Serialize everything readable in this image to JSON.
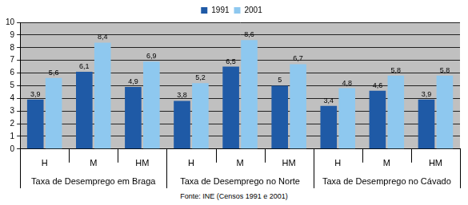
{
  "chart_data": {
    "type": "bar",
    "categories": [
      "H",
      "M",
      "HM",
      "H",
      "M",
      "HM",
      "H",
      "M",
      "HM"
    ],
    "category_groups": [
      "Taxa de Desemprego em Braga",
      "Taxa de Desemprego no Norte",
      "Taxa de Desemprego no Cávado"
    ],
    "series": [
      {
        "name": "1991",
        "color": "#1f5aa6",
        "values": [
          3.9,
          6.1,
          4.9,
          3.8,
          6.5,
          5,
          3.4,
          4.6,
          3.9
        ],
        "value_labels": [
          "3,9",
          "6,1",
          "4,9",
          "3,8",
          "6,5",
          "5",
          "3,4",
          "4,6",
          "3,9"
        ]
      },
      {
        "name": "2001",
        "color": "#8ec8ef",
        "values": [
          5.6,
          8.4,
          6.9,
          5.2,
          8.6,
          6.7,
          4.8,
          5.8,
          5.8
        ],
        "value_labels": [
          "5,6",
          "8,4",
          "6,9",
          "5,2",
          "8,6",
          "6,7",
          "4,8",
          "5,8",
          "5,8"
        ]
      }
    ],
    "ylim": [
      0,
      10
    ],
    "yticks": [
      0,
      1,
      2,
      3,
      4,
      5,
      6,
      7,
      8,
      9,
      10
    ],
    "grid": true,
    "legend": "top",
    "data_labels": true,
    "source": "Fonte: INE (Censos 1991 e 2001)"
  }
}
